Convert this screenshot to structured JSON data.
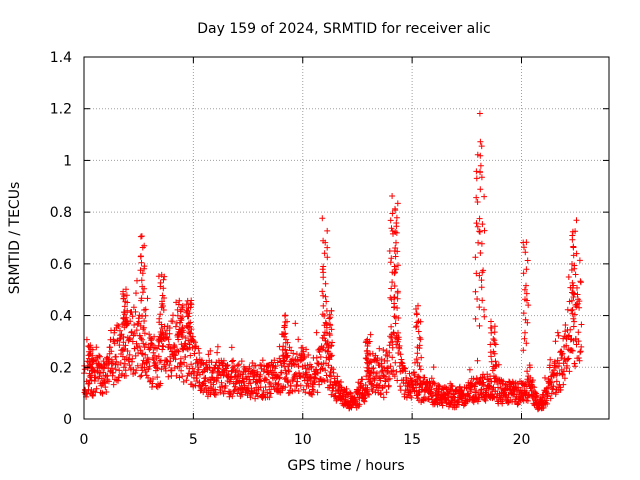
{
  "chart_data": {
    "type": "scatter",
    "title": "Day 159 of 2024, SRMTID for receiver alic",
    "xlabel": "GPS time / hours",
    "ylabel": "SRMTID / TECUs",
    "xlim": [
      0,
      24
    ],
    "ylim": [
      0,
      1.4
    ],
    "xticks": [
      0,
      5,
      10,
      15,
      20
    ],
    "xtick_labels": [
      "0",
      "5",
      "10",
      "15",
      "20"
    ],
    "yticks": [
      0,
      0.2,
      0.4,
      0.6,
      0.8,
      1.0,
      1.2,
      1.4
    ],
    "ytick_labels": [
      "0",
      "0.2",
      "0.4",
      "0.6",
      "0.8",
      "1",
      "1.2",
      "1.4"
    ],
    "grid": true,
    "marker": "+",
    "marker_color": "#ff0000",
    "series": [
      {
        "name": "SRMTID",
        "baseline": [
          [
            0,
            0.15
          ],
          [
            1,
            0.18
          ],
          [
            1.8,
            0.3
          ],
          [
            2.5,
            0.3
          ],
          [
            3.2,
            0.2
          ],
          [
            4,
            0.28
          ],
          [
            4.8,
            0.25
          ],
          [
            5.5,
            0.15
          ],
          [
            6.5,
            0.16
          ],
          [
            7.5,
            0.14
          ],
          [
            8.5,
            0.15
          ],
          [
            9.3,
            0.18
          ],
          [
            10,
            0.2
          ],
          [
            10.5,
            0.15
          ],
          [
            11,
            0.25
          ],
          [
            11.5,
            0.12
          ],
          [
            12.3,
            0.06
          ],
          [
            12.8,
            0.1
          ],
          [
            13.2,
            0.2
          ],
          [
            13.7,
            0.15
          ],
          [
            14.2,
            0.3
          ],
          [
            14.6,
            0.15
          ],
          [
            15.2,
            0.12
          ],
          [
            16,
            0.1
          ],
          [
            17,
            0.08
          ],
          [
            18,
            0.12
          ],
          [
            18.6,
            0.12
          ],
          [
            19.2,
            0.1
          ],
          [
            20,
            0.1
          ],
          [
            20.4,
            0.12
          ],
          [
            20.8,
            0.05
          ],
          [
            21.2,
            0.1
          ],
          [
            21.8,
            0.2
          ],
          [
            22.3,
            0.35
          ],
          [
            22.7,
            0.35
          ]
        ],
        "peaks": [
          [
            0.3,
            0.3
          ],
          [
            1.9,
            0.52
          ],
          [
            2.7,
            0.76
          ],
          [
            3.55,
            0.6
          ],
          [
            4.4,
            0.46
          ],
          [
            4.8,
            0.48
          ],
          [
            9.2,
            0.42
          ],
          [
            11.0,
            0.78
          ],
          [
            11.2,
            0.45
          ],
          [
            13.0,
            0.34
          ],
          [
            14.1,
            0.91
          ],
          [
            14.3,
            0.85
          ],
          [
            15.3,
            0.47
          ],
          [
            18.0,
            1.2
          ],
          [
            18.2,
            1.08
          ],
          [
            18.7,
            0.4
          ],
          [
            20.2,
            0.75
          ],
          [
            22.4,
            0.78
          ]
        ]
      }
    ]
  }
}
